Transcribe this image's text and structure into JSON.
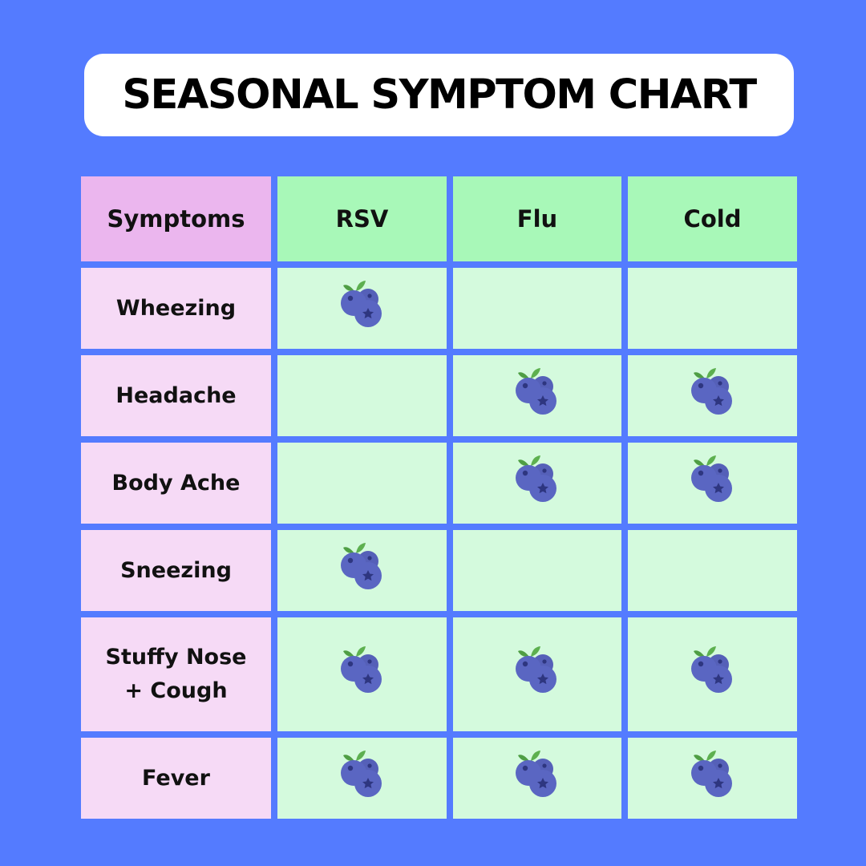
{
  "title": "SEASONAL SYMPTOM CHART",
  "header": {
    "symptoms_label": "Symptoms",
    "columns": [
      "RSV",
      "Flu",
      "Cold"
    ]
  },
  "rows": [
    {
      "symptom": "Wheezing",
      "marks": [
        true,
        false,
        false
      ]
    },
    {
      "symptom": "Headache",
      "marks": [
        false,
        true,
        true
      ]
    },
    {
      "symptom": "Body Ache",
      "marks": [
        false,
        true,
        true
      ]
    },
    {
      "symptom": "Sneezing",
      "marks": [
        true,
        false,
        false
      ]
    },
    {
      "symptom": "Stuffy Nose\n+ Cough",
      "marks": [
        true,
        true,
        true
      ]
    },
    {
      "symptom": "Fever",
      "marks": [
        true,
        true,
        true
      ]
    }
  ],
  "mark_icon": "blueberry-icon",
  "colors": {
    "background": "#547BFF",
    "header_symptoms": "#EBB6EE",
    "header_columns": "#A8F8B8",
    "row_label": "#F6DAF6",
    "body_cell": "#D4FADD",
    "berry": "#5A66C2",
    "leaf": "#4F9E44"
  }
}
